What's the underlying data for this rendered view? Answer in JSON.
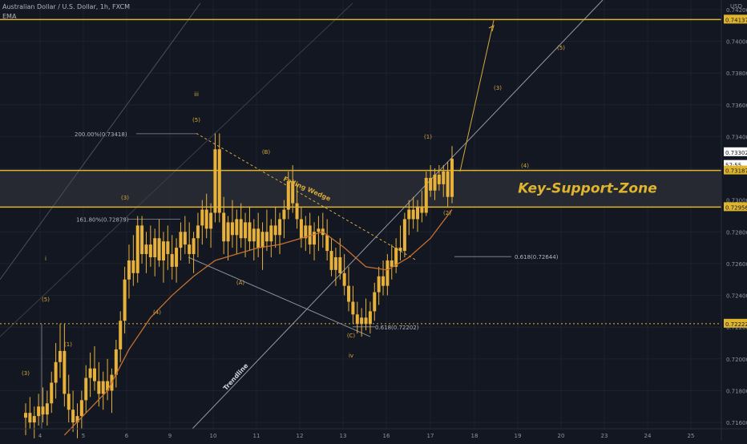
{
  "header": {
    "symbol_line": "Australian Dollar / U.S. Dollar, 1h, FXCM",
    "indicator": "EMA",
    "currency": "USD"
  },
  "colors": {
    "background": "#131722",
    "candle": "#e8b13a",
    "ema": "#c7702e",
    "level": "#e0b52e",
    "zone_fill": "#2a2d34",
    "annotation": "#d4a93c",
    "grey_line": "#8c8f99",
    "axis_text": "#8f93a1"
  },
  "chart_data": {
    "type": "candlestick",
    "ylim": [
      0.7156,
      0.7426
    ],
    "y_ticks": [
      0.716,
      0.718,
      0.72,
      0.722,
      0.724,
      0.726,
      0.728,
      0.73,
      0.732,
      0.734,
      0.736,
      0.738,
      0.74,
      0.742
    ],
    "y_tick_labels": [
      "0.71600",
      "0.71800",
      "0.72000",
      "0.72200",
      "0.72400",
      "0.72600",
      "0.72800",
      "0.73000",
      "0.73200",
      "0.73400",
      "0.73600",
      "0.73800",
      "0.74000",
      "0.74200"
    ],
    "x_ticks": [
      4,
      5,
      6,
      9,
      10,
      11,
      12,
      13,
      16,
      17,
      18,
      19,
      20,
      23,
      24,
      25
    ],
    "price_tags": [
      {
        "label": "0.74137",
        "value": 0.74137,
        "kind": "level"
      },
      {
        "label": "0.73302",
        "value": 0.73302,
        "kind": "current"
      },
      {
        "label": "57:55",
        "value": 0.73222,
        "kind": "countdown"
      },
      {
        "label": "0.73187",
        "value": 0.73187,
        "kind": "level"
      },
      {
        "label": "0.72956",
        "value": 0.72956,
        "kind": "level"
      },
      {
        "label": "0.72222",
        "value": 0.72222,
        "kind": "level"
      }
    ],
    "horizontal_levels": [
      {
        "value": 0.74137,
        "style": "solid"
      },
      {
        "value": 0.73187,
        "style": "solid"
      },
      {
        "value": 0.72956,
        "style": "solid"
      },
      {
        "value": 0.72222,
        "style": "dotted"
      }
    ],
    "zone": {
      "top": 0.73187,
      "bottom": 0.72956,
      "label": "Key-Support-Zone"
    },
    "fib_labels": [
      {
        "text": "200.00%(0.73418)",
        "value": 0.73418
      },
      {
        "text": "161.80%(0.72879)",
        "value": 0.72879
      },
      {
        "text": "0.618(0.72644)",
        "value": 0.72644
      },
      {
        "text": "0.618(0.72202)",
        "value": 0.72202
      }
    ],
    "pattern_labels": [
      "Falling Wedge",
      "Trendline"
    ],
    "wave_labels": [
      "(3)",
      "(5)",
      "(1)",
      "(4)",
      "(3)",
      "(5)",
      "iii",
      "(B)",
      "(A)",
      "(C)",
      "iv",
      "(1)",
      "(2)",
      "(3)",
      "(4)",
      "(5)",
      "i"
    ],
    "candles": [
      {
        "x": 2.6,
        "o": 0.7163,
        "h": 0.7172,
        "l": 0.7152,
        "c": 0.7166
      },
      {
        "x": 2.7,
        "o": 0.7166,
        "h": 0.7176,
        "l": 0.7156,
        "c": 0.716
      },
      {
        "x": 2.8,
        "o": 0.716,
        "h": 0.717,
        "l": 0.715,
        "c": 0.7164
      },
      {
        "x": 2.9,
        "o": 0.7164,
        "h": 0.7178,
        "l": 0.7158,
        "c": 0.717
      },
      {
        "x": 3.0,
        "o": 0.717,
        "h": 0.7182,
        "l": 0.716,
        "c": 0.7165
      },
      {
        "x": 3.1,
        "o": 0.7165,
        "h": 0.718,
        "l": 0.7158,
        "c": 0.7172
      },
      {
        "x": 3.2,
        "o": 0.7172,
        "h": 0.7192,
        "l": 0.7166,
        "c": 0.7185
      },
      {
        "x": 3.3,
        "o": 0.7185,
        "h": 0.721,
        "l": 0.7175,
        "c": 0.7198
      },
      {
        "x": 3.4,
        "o": 0.7198,
        "h": 0.7222,
        "l": 0.7188,
        "c": 0.7205
      },
      {
        "x": 3.5,
        "o": 0.7205,
        "h": 0.7222,
        "l": 0.717,
        "c": 0.7178
      },
      {
        "x": 3.6,
        "o": 0.7178,
        "h": 0.719,
        "l": 0.716,
        "c": 0.7168
      },
      {
        "x": 3.7,
        "o": 0.7168,
        "h": 0.718,
        "l": 0.7154,
        "c": 0.716
      },
      {
        "x": 3.8,
        "o": 0.716,
        "h": 0.7172,
        "l": 0.715,
        "c": 0.7164
      },
      {
        "x": 3.9,
        "o": 0.7164,
        "h": 0.718,
        "l": 0.7156,
        "c": 0.7174
      },
      {
        "x": 4.0,
        "o": 0.7174,
        "h": 0.7196,
        "l": 0.7166,
        "c": 0.7188
      },
      {
        "x": 4.1,
        "o": 0.7188,
        "h": 0.7204,
        "l": 0.7176,
        "c": 0.7194
      },
      {
        "x": 4.2,
        "o": 0.7194,
        "h": 0.7208,
        "l": 0.718,
        "c": 0.7186
      },
      {
        "x": 4.3,
        "o": 0.7186,
        "h": 0.7198,
        "l": 0.717,
        "c": 0.7178
      },
      {
        "x": 4.4,
        "o": 0.7178,
        "h": 0.7192,
        "l": 0.7168,
        "c": 0.7186
      },
      {
        "x": 4.5,
        "o": 0.7186,
        "h": 0.72,
        "l": 0.7174,
        "c": 0.718
      },
      {
        "x": 4.6,
        "o": 0.718,
        "h": 0.7194,
        "l": 0.7166,
        "c": 0.719
      },
      {
        "x": 4.7,
        "o": 0.719,
        "h": 0.7212,
        "l": 0.7182,
        "c": 0.7206
      },
      {
        "x": 4.8,
        "o": 0.7206,
        "h": 0.723,
        "l": 0.7198,
        "c": 0.7224
      },
      {
        "x": 4.9,
        "o": 0.7224,
        "h": 0.7258,
        "l": 0.7216,
        "c": 0.725
      },
      {
        "x": 5.0,
        "o": 0.725,
        "h": 0.7272,
        "l": 0.7238,
        "c": 0.7262
      },
      {
        "x": 5.1,
        "o": 0.7262,
        "h": 0.7278,
        "l": 0.7246,
        "c": 0.7254
      },
      {
        "x": 5.2,
        "o": 0.7254,
        "h": 0.729,
        "l": 0.7248,
        "c": 0.7284
      },
      {
        "x": 5.3,
        "o": 0.7284,
        "h": 0.729,
        "l": 0.726,
        "c": 0.7266
      },
      {
        "x": 5.4,
        "o": 0.7266,
        "h": 0.728,
        "l": 0.7254,
        "c": 0.7272
      },
      {
        "x": 5.5,
        "o": 0.7272,
        "h": 0.7284,
        "l": 0.7258,
        "c": 0.7264
      },
      {
        "x": 5.6,
        "o": 0.7264,
        "h": 0.7282,
        "l": 0.7252,
        "c": 0.7276
      },
      {
        "x": 5.7,
        "o": 0.7276,
        "h": 0.7288,
        "l": 0.7258,
        "c": 0.7262
      },
      {
        "x": 5.8,
        "o": 0.7262,
        "h": 0.728,
        "l": 0.7248,
        "c": 0.7274
      },
      {
        "x": 5.9,
        "o": 0.7274,
        "h": 0.7284,
        "l": 0.7256,
        "c": 0.7266
      },
      {
        "x": 6.0,
        "o": 0.7266,
        "h": 0.7278,
        "l": 0.725,
        "c": 0.7258
      },
      {
        "x": 6.1,
        "o": 0.7258,
        "h": 0.7276,
        "l": 0.7248,
        "c": 0.727
      },
      {
        "x": 6.2,
        "o": 0.727,
        "h": 0.7286,
        "l": 0.7262,
        "c": 0.728
      },
      {
        "x": 6.3,
        "o": 0.728,
        "h": 0.729,
        "l": 0.7266,
        "c": 0.7272
      },
      {
        "x": 6.4,
        "o": 0.7272,
        "h": 0.7286,
        "l": 0.726,
        "c": 0.7266
      },
      {
        "x": 6.5,
        "o": 0.7266,
        "h": 0.728,
        "l": 0.7254,
        "c": 0.7276
      },
      {
        "x": 6.6,
        "o": 0.7276,
        "h": 0.7292,
        "l": 0.7264,
        "c": 0.7284
      },
      {
        "x": 6.7,
        "o": 0.7284,
        "h": 0.73,
        "l": 0.7272,
        "c": 0.7294
      },
      {
        "x": 6.8,
        "o": 0.7294,
        "h": 0.7304,
        "l": 0.7276,
        "c": 0.7282
      },
      {
        "x": 6.9,
        "o": 0.7282,
        "h": 0.7298,
        "l": 0.727,
        "c": 0.7292
      },
      {
        "x": 7.0,
        "o": 0.7292,
        "h": 0.7342,
        "l": 0.7286,
        "c": 0.7332
      },
      {
        "x": 7.1,
        "o": 0.7332,
        "h": 0.7342,
        "l": 0.7286,
        "c": 0.7292
      },
      {
        "x": 7.2,
        "o": 0.7292,
        "h": 0.7302,
        "l": 0.7266,
        "c": 0.7274
      },
      {
        "x": 7.3,
        "o": 0.7274,
        "h": 0.729,
        "l": 0.7262,
        "c": 0.7286
      },
      {
        "x": 7.4,
        "o": 0.7286,
        "h": 0.73,
        "l": 0.727,
        "c": 0.7278
      },
      {
        "x": 7.5,
        "o": 0.7278,
        "h": 0.7294,
        "l": 0.7266,
        "c": 0.7288
      },
      {
        "x": 7.6,
        "o": 0.7288,
        "h": 0.7298,
        "l": 0.727,
        "c": 0.7276
      },
      {
        "x": 7.7,
        "o": 0.7276,
        "h": 0.7292,
        "l": 0.7264,
        "c": 0.7286
      },
      {
        "x": 7.8,
        "o": 0.7286,
        "h": 0.7296,
        "l": 0.7268,
        "c": 0.7274
      },
      {
        "x": 7.9,
        "o": 0.7274,
        "h": 0.7288,
        "l": 0.7262,
        "c": 0.7282
      },
      {
        "x": 8.0,
        "o": 0.7282,
        "h": 0.7292,
        "l": 0.7264,
        "c": 0.727
      },
      {
        "x": 8.1,
        "o": 0.727,
        "h": 0.7286,
        "l": 0.7256,
        "c": 0.728
      },
      {
        "x": 8.2,
        "o": 0.728,
        "h": 0.7294,
        "l": 0.7268,
        "c": 0.7274
      },
      {
        "x": 8.3,
        "o": 0.7274,
        "h": 0.7288,
        "l": 0.7264,
        "c": 0.7284
      },
      {
        "x": 8.4,
        "o": 0.7284,
        "h": 0.7296,
        "l": 0.727,
        "c": 0.7278
      },
      {
        "x": 8.5,
        "o": 0.7278,
        "h": 0.7292,
        "l": 0.7266,
        "c": 0.7288
      },
      {
        "x": 8.6,
        "o": 0.7288,
        "h": 0.73,
        "l": 0.7276,
        "c": 0.7294
      },
      {
        "x": 8.7,
        "o": 0.7294,
        "h": 0.7318,
        "l": 0.7288,
        "c": 0.7312
      },
      {
        "x": 8.8,
        "o": 0.7312,
        "h": 0.7322,
        "l": 0.7292,
        "c": 0.7298
      },
      {
        "x": 8.9,
        "o": 0.7298,
        "h": 0.731,
        "l": 0.7282,
        "c": 0.7288
      },
      {
        "x": 9.0,
        "o": 0.7288,
        "h": 0.7296,
        "l": 0.727,
        "c": 0.7276
      },
      {
        "x": 9.1,
        "o": 0.7276,
        "h": 0.729,
        "l": 0.7268,
        "c": 0.7284
      },
      {
        "x": 9.2,
        "o": 0.7284,
        "h": 0.7292,
        "l": 0.7266,
        "c": 0.7272
      },
      {
        "x": 9.3,
        "o": 0.7272,
        "h": 0.7286,
        "l": 0.7262,
        "c": 0.728
      },
      {
        "x": 9.4,
        "o": 0.728,
        "h": 0.729,
        "l": 0.7268,
        "c": 0.7282
      },
      {
        "x": 9.5,
        "o": 0.7282,
        "h": 0.7292,
        "l": 0.727,
        "c": 0.7278
      },
      {
        "x": 9.6,
        "o": 0.7278,
        "h": 0.7288,
        "l": 0.7262,
        "c": 0.7268
      },
      {
        "x": 9.7,
        "o": 0.7268,
        "h": 0.7276,
        "l": 0.7252,
        "c": 0.7256
      },
      {
        "x": 9.8,
        "o": 0.7256,
        "h": 0.727,
        "l": 0.7246,
        "c": 0.7264
      },
      {
        "x": 9.9,
        "o": 0.7264,
        "h": 0.7276,
        "l": 0.725,
        "c": 0.7254
      },
      {
        "x": 10.0,
        "o": 0.7254,
        "h": 0.7266,
        "l": 0.724,
        "c": 0.7246
      },
      {
        "x": 10.1,
        "o": 0.7246,
        "h": 0.7258,
        "l": 0.723,
        "c": 0.7236
      },
      {
        "x": 10.2,
        "o": 0.7236,
        "h": 0.7246,
        "l": 0.7222,
        "c": 0.7228
      },
      {
        "x": 10.3,
        "o": 0.7228,
        "h": 0.7236,
        "l": 0.7216,
        "c": 0.7222
      },
      {
        "x": 10.4,
        "o": 0.7222,
        "h": 0.7232,
        "l": 0.7214,
        "c": 0.7226
      },
      {
        "x": 10.5,
        "o": 0.7226,
        "h": 0.7238,
        "l": 0.7218,
        "c": 0.7222
      },
      {
        "x": 10.6,
        "o": 0.7222,
        "h": 0.7236,
        "l": 0.7216,
        "c": 0.723
      },
      {
        "x": 10.7,
        "o": 0.723,
        "h": 0.7248,
        "l": 0.7224,
        "c": 0.7242
      },
      {
        "x": 10.8,
        "o": 0.7242,
        "h": 0.7258,
        "l": 0.7234,
        "c": 0.7252
      },
      {
        "x": 10.9,
        "o": 0.7252,
        "h": 0.7262,
        "l": 0.724,
        "c": 0.7246
      },
      {
        "x": 11.0,
        "o": 0.7246,
        "h": 0.7266,
        "l": 0.724,
        "c": 0.7262
      },
      {
        "x": 11.1,
        "o": 0.7262,
        "h": 0.7272,
        "l": 0.725,
        "c": 0.7258
      },
      {
        "x": 11.2,
        "o": 0.7258,
        "h": 0.7276,
        "l": 0.7254,
        "c": 0.727
      },
      {
        "x": 11.3,
        "o": 0.727,
        "h": 0.7284,
        "l": 0.7262,
        "c": 0.7268
      },
      {
        "x": 11.4,
        "o": 0.7268,
        "h": 0.7292,
        "l": 0.7264,
        "c": 0.7288
      },
      {
        "x": 11.5,
        "o": 0.7288,
        "h": 0.73,
        "l": 0.7278,
        "c": 0.7294
      },
      {
        "x": 11.6,
        "o": 0.7294,
        "h": 0.7302,
        "l": 0.7282,
        "c": 0.7288
      },
      {
        "x": 11.7,
        "o": 0.7288,
        "h": 0.73,
        "l": 0.728,
        "c": 0.7296
      },
      {
        "x": 11.8,
        "o": 0.7296,
        "h": 0.7306,
        "l": 0.7286,
        "c": 0.7292
      },
      {
        "x": 11.9,
        "o": 0.7292,
        "h": 0.7318,
        "l": 0.729,
        "c": 0.7314
      },
      {
        "x": 12.0,
        "o": 0.7314,
        "h": 0.7322,
        "l": 0.7302,
        "c": 0.7306
      },
      {
        "x": 12.1,
        "o": 0.7306,
        "h": 0.732,
        "l": 0.73,
        "c": 0.7316
      },
      {
        "x": 12.2,
        "o": 0.7316,
        "h": 0.7322,
        "l": 0.7306,
        "c": 0.731
      },
      {
        "x": 12.3,
        "o": 0.731,
        "h": 0.7322,
        "l": 0.7302,
        "c": 0.7318
      },
      {
        "x": 12.4,
        "o": 0.7318,
        "h": 0.7324,
        "l": 0.7296,
        "c": 0.7302
      },
      {
        "x": 12.5,
        "o": 0.7302,
        "h": 0.7334,
        "l": 0.7298,
        "c": 0.7326
      }
    ],
    "ema": [
      {
        "x": 3.5,
        "y": 0.7152
      },
      {
        "x": 4.0,
        "y": 0.7166
      },
      {
        "x": 4.5,
        "y": 0.718
      },
      {
        "x": 5.0,
        "y": 0.7206
      },
      {
        "x": 5.5,
        "y": 0.7226
      },
      {
        "x": 6.0,
        "y": 0.724
      },
      {
        "x": 6.5,
        "y": 0.7252
      },
      {
        "x": 7.0,
        "y": 0.7262
      },
      {
        "x": 7.5,
        "y": 0.7266
      },
      {
        "x": 8.0,
        "y": 0.727
      },
      {
        "x": 8.5,
        "y": 0.7272
      },
      {
        "x": 9.0,
        "y": 0.7276
      },
      {
        "x": 9.5,
        "y": 0.728
      },
      {
        "x": 10.0,
        "y": 0.727
      },
      {
        "x": 10.5,
        "y": 0.7258
      },
      {
        "x": 11.0,
        "y": 0.7256
      },
      {
        "x": 11.5,
        "y": 0.7264
      },
      {
        "x": 12.0,
        "y": 0.7276
      },
      {
        "x": 12.5,
        "y": 0.7294
      }
    ]
  }
}
